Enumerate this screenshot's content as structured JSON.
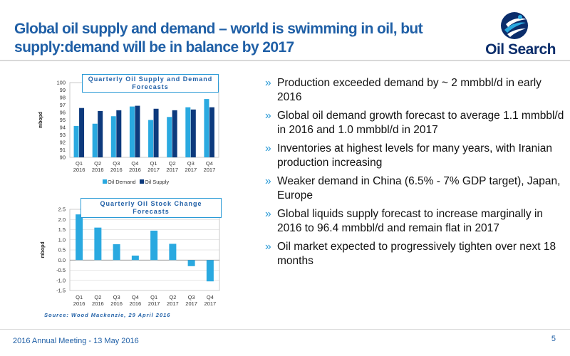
{
  "title": {
    "line1": "Global oil supply and demand – world is swimming in oil, but",
    "line2": "supply:demand will be in balance by 2017"
  },
  "logo": {
    "text": "Oil Search"
  },
  "colors": {
    "title_blue": "#1f5fa6",
    "light_bar": "#2aa9e0",
    "dark_bar": "#0d3a7d",
    "accent": "#2a9ad6"
  },
  "bullets": [
    "Production exceeded demand by ~ 2 mmbbl/d in early 2016",
    "Global oil demand growth forecast to average 1.1 mmbbl/d in 2016 and 1.0 mmbbl/d in 2017",
    "Inventories at highest levels for many years, with Iranian production increasing",
    "Weaker demand in China (6.5% - 7% GDP target), Japan, Europe",
    "Global liquids supply forecast to increase marginally in 2016 to 96.4 mmbbl/d and remain flat in 2017",
    "Oil market expected to progressively tighten over next 18 months"
  ],
  "bullet_marker": "»",
  "source": "Source: Wood Mackenzie, 29 April 2016",
  "footer": {
    "text": "2016 Annual Meeting - 13 May 2016",
    "page": "5"
  },
  "chart_data": [
    {
      "type": "bar",
      "title": "Quarterly Oil Supply and Demand Forecasts",
      "ylabel": "mbopd",
      "ylim": [
        90,
        100
      ],
      "yticks": [
        90,
        91,
        92,
        93,
        94,
        95,
        96,
        97,
        98,
        99,
        100
      ],
      "categories": [
        [
          "Q1",
          "2016"
        ],
        [
          "Q2",
          "2016"
        ],
        [
          "Q3",
          "2016"
        ],
        [
          "Q4",
          "2016"
        ],
        [
          "Q1",
          "2017"
        ],
        [
          "Q2",
          "2017"
        ],
        [
          "Q3",
          "2017"
        ],
        [
          "Q4",
          "2017"
        ]
      ],
      "series": [
        {
          "name": "Oil Demand",
          "values": [
            94.2,
            94.5,
            95.5,
            96.8,
            95.0,
            95.4,
            96.7,
            97.8
          ]
        },
        {
          "name": "Oil Supply",
          "values": [
            96.6,
            96.2,
            96.3,
            96.9,
            96.5,
            96.3,
            96.4,
            96.7
          ]
        }
      ],
      "legend": "bottom"
    },
    {
      "type": "bar",
      "title": "Quarterly Oil Stock Change Forecasts",
      "ylabel": "mbopd",
      "ylim": [
        -1.5,
        2.5
      ],
      "yticks": [
        "-1.5",
        "-1.0",
        "-0.5",
        "0.0",
        "0.5",
        "1.0",
        "1.5",
        "2.0",
        "2.5"
      ],
      "categories": [
        [
          "Q1",
          "2016"
        ],
        [
          "Q2",
          "2016"
        ],
        [
          "Q3",
          "2016"
        ],
        [
          "Q4",
          "2016"
        ],
        [
          "Q1",
          "2017"
        ],
        [
          "Q2",
          "2017"
        ],
        [
          "Q3",
          "2017"
        ],
        [
          "Q4",
          "2017"
        ]
      ],
      "values": [
        2.25,
        1.6,
        0.78,
        0.22,
        1.45,
        0.8,
        -0.3,
        -1.05
      ]
    }
  ]
}
